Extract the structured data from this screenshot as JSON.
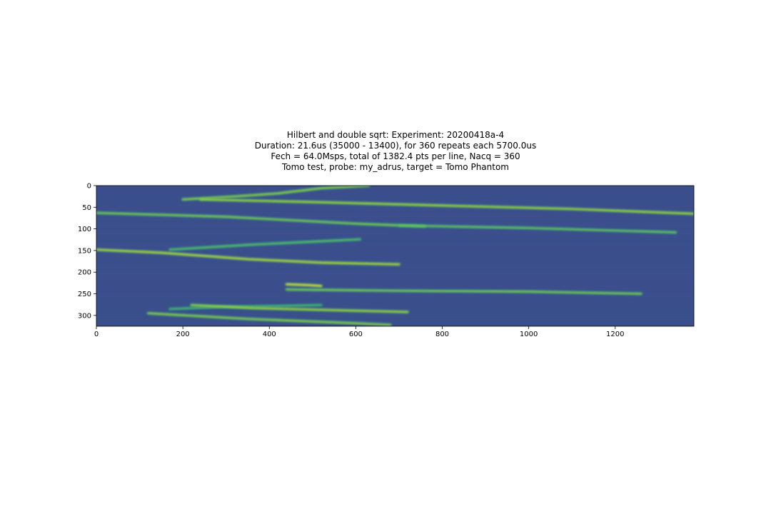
{
  "title_lines": [
    "Hilbert and double sqrt: Experiment: 20200418a-4",
    "Duration: 21.6us (35000 - 13400), for 360 repeats each 5700.0us",
    "Fech = 64.0Msps, total of 1382.4 pts per line, Nacq = 360",
    "Tomo test, probe: my_adrus, target = Tomo Phantom"
  ],
  "chart_data": {
    "type": "heatmap",
    "title": "Hilbert and double sqrt: Experiment: 20200418a-4\nDuration: 21.6us (35000 - 13400), for 360 repeats each 5700.0us\nFech = 64.0Msps, total of 1382.4 pts per line, Nacq = 360\nTomo test, probe: my_adrus, target = Tomo Phantom",
    "xlabel": "",
    "ylabel": "",
    "xlim": [
      0,
      1382
    ],
    "ylim": [
      325,
      0
    ],
    "x_ticks": [
      0,
      200,
      400,
      600,
      800,
      1000,
      1200
    ],
    "y_ticks": [
      0,
      50,
      100,
      150,
      200,
      250,
      300
    ],
    "colormap": "viridis",
    "background_color": "#3b4f8e",
    "features": [
      {
        "points": [
          [
            200,
            32
          ],
          [
            320,
            25
          ],
          [
            420,
            18
          ],
          [
            520,
            6
          ],
          [
            630,
            0
          ]
        ],
        "intensity": 0.8
      },
      {
        "points": [
          [
            240,
            32
          ],
          [
            500,
            38
          ],
          [
            800,
            46
          ],
          [
            1100,
            54
          ],
          [
            1380,
            65
          ]
        ],
        "intensity": 0.85
      },
      {
        "points": [
          [
            0,
            63
          ],
          [
            300,
            72
          ],
          [
            600,
            88
          ],
          [
            760,
            94
          ]
        ],
        "intensity": 0.75
      },
      {
        "points": [
          [
            700,
            92
          ],
          [
            1000,
            98
          ],
          [
            1340,
            108
          ]
        ],
        "intensity": 0.7
      },
      {
        "points": [
          [
            170,
            148
          ],
          [
            350,
            137
          ],
          [
            530,
            128
          ],
          [
            610,
            124
          ]
        ],
        "intensity": 0.65
      },
      {
        "points": [
          [
            0,
            148
          ],
          [
            150,
            155
          ],
          [
            350,
            170
          ],
          [
            520,
            178
          ],
          [
            700,
            182
          ]
        ],
        "intensity": 0.9
      },
      {
        "points": [
          [
            440,
            228
          ],
          [
            490,
            230
          ],
          [
            520,
            232
          ]
        ],
        "intensity": 1.0
      },
      {
        "points": [
          [
            440,
            240
          ],
          [
            700,
            243
          ],
          [
            1000,
            245
          ],
          [
            1260,
            250
          ]
        ],
        "intensity": 0.75
      },
      {
        "points": [
          [
            170,
            285
          ],
          [
            300,
            280
          ],
          [
            430,
            278
          ],
          [
            520,
            276
          ]
        ],
        "intensity": 0.6
      },
      {
        "points": [
          [
            220,
            276
          ],
          [
            360,
            283
          ],
          [
            560,
            288
          ],
          [
            720,
            292
          ]
        ],
        "intensity": 0.85
      },
      {
        "points": [
          [
            120,
            295
          ],
          [
            350,
            308
          ],
          [
            600,
            318
          ],
          [
            680,
            322
          ]
        ],
        "intensity": 0.8
      }
    ]
  }
}
